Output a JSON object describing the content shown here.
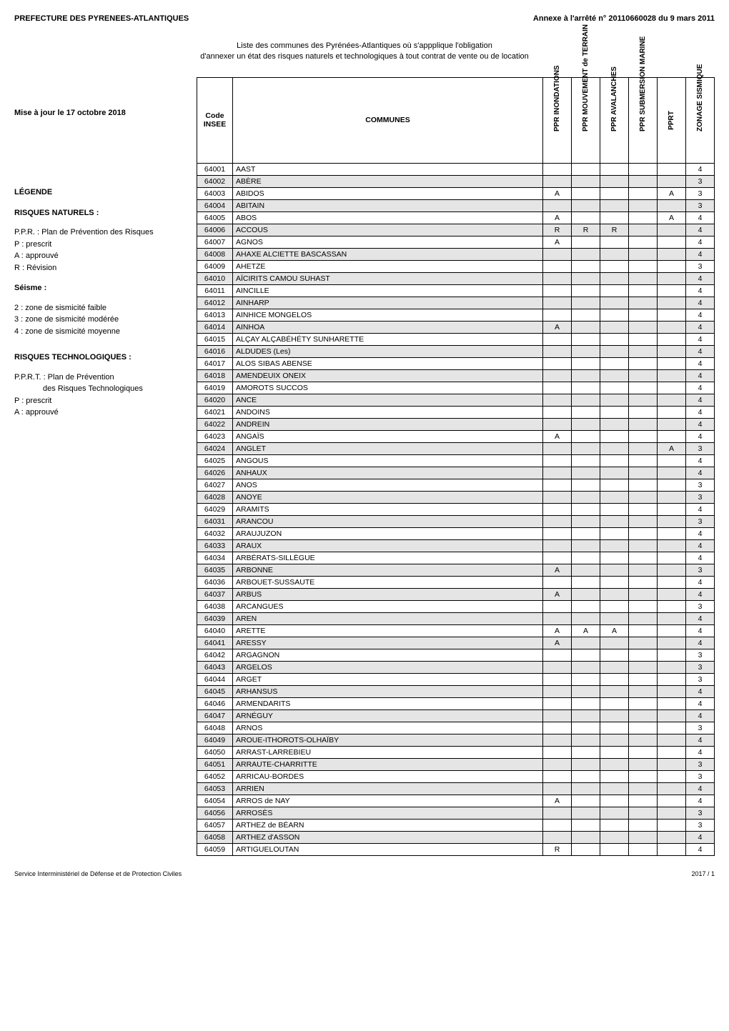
{
  "header": {
    "left": "PREFECTURE DES PYRENEES-ATLANTIQUES",
    "right": "Annexe à l'arrêté n° 20110660028 du 9 mars 2011"
  },
  "intro": {
    "line1": "Liste des communes des Pyrénées-Atlantiques où s'appplique l'obligation",
    "line2": "d'annexer un état des risques naturels et technologiques à tout contrat de vente ou de location"
  },
  "left": {
    "update": "Mise à jour le 17 octobre 2018",
    "legend": "LÉGENDE",
    "risques_naturels": "RISQUES NATURELS :",
    "ppr": "P.P.R. : Plan de Prévention des Risques",
    "p_prescrit": "P : prescrit",
    "a_approuve": "A : approuvé",
    "r_revision": "R : Révision",
    "seisme": "Séisme :",
    "s2": "2 : zone de sismicité faible",
    "s3": "3 : zone de sismicité modérée",
    "s4": "4 : zone de sismicité moyenne",
    "risques_tech": "RISQUES TECHNOLOGIQUES :",
    "pprt": "P.P.R.T. : Plan de Prévention",
    "pprt2": "des Risques Technologiques",
    "p2": "P : prescrit",
    "a2": "A : approuvé"
  },
  "table": {
    "headers": {
      "code": "Code INSEE",
      "communes": "COMMUNES",
      "inond": "PPR INONDATIONS",
      "mouv": "PPR MOUVEMENT de TERRAIN",
      "aval": "PPR AVALANCHES",
      "subm": "PPR SUBMERSION MARINE",
      "pprt": "PPRT",
      "zonage": "ZONAGE SISMIQUE"
    },
    "rows": [
      {
        "code": "64001",
        "name": "AAST",
        "inond": "",
        "mouv": "",
        "aval": "",
        "subm": "",
        "pprt": "",
        "zon": "4",
        "shade": false
      },
      {
        "code": "64002",
        "name": "ABÈRE",
        "inond": "",
        "mouv": "",
        "aval": "",
        "subm": "",
        "pprt": "",
        "zon": "3",
        "shade": true
      },
      {
        "code": "64003",
        "name": "ABIDOS",
        "inond": "A",
        "mouv": "",
        "aval": "",
        "subm": "",
        "pprt": "A",
        "zon": "3",
        "shade": false
      },
      {
        "code": "64004",
        "name": "ABITAIN",
        "inond": "",
        "mouv": "",
        "aval": "",
        "subm": "",
        "pprt": "",
        "zon": "3",
        "shade": true
      },
      {
        "code": "64005",
        "name": "ABOS",
        "inond": "A",
        "mouv": "",
        "aval": "",
        "subm": "",
        "pprt": "A",
        "zon": "4",
        "shade": false
      },
      {
        "code": "64006",
        "name": "ACCOUS",
        "inond": "R",
        "mouv": "R",
        "aval": "R",
        "subm": "",
        "pprt": "",
        "zon": "4",
        "shade": true
      },
      {
        "code": "64007",
        "name": "AGNOS",
        "inond": "A",
        "mouv": "",
        "aval": "",
        "subm": "",
        "pprt": "",
        "zon": "4",
        "shade": false
      },
      {
        "code": "64008",
        "name": "AHAXE ALCIETTE BASCASSAN",
        "inond": "",
        "mouv": "",
        "aval": "",
        "subm": "",
        "pprt": "",
        "zon": "4",
        "shade": true
      },
      {
        "code": "64009",
        "name": "AHETZE",
        "inond": "",
        "mouv": "",
        "aval": "",
        "subm": "",
        "pprt": "",
        "zon": "3",
        "shade": false
      },
      {
        "code": "64010",
        "name": "AÏCIRITS CAMOU SUHAST",
        "inond": "",
        "mouv": "",
        "aval": "",
        "subm": "",
        "pprt": "",
        "zon": "4",
        "shade": true
      },
      {
        "code": "64011",
        "name": "AINCILLE",
        "inond": "",
        "mouv": "",
        "aval": "",
        "subm": "",
        "pprt": "",
        "zon": "4",
        "shade": false
      },
      {
        "code": "64012",
        "name": "AINHARP",
        "inond": "",
        "mouv": "",
        "aval": "",
        "subm": "",
        "pprt": "",
        "zon": "4",
        "shade": true
      },
      {
        "code": "64013",
        "name": "AINHICE MONGELOS",
        "inond": "",
        "mouv": "",
        "aval": "",
        "subm": "",
        "pprt": "",
        "zon": "4",
        "shade": false
      },
      {
        "code": "64014",
        "name": "AINHOA",
        "inond": "A",
        "mouv": "",
        "aval": "",
        "subm": "",
        "pprt": "",
        "zon": "4",
        "shade": true
      },
      {
        "code": "64015",
        "name": "ALÇAY ALÇABÉHÉTY SUNHARETTE",
        "inond": "",
        "mouv": "",
        "aval": "",
        "subm": "",
        "pprt": "",
        "zon": "4",
        "shade": false
      },
      {
        "code": "64016",
        "name": "ALDUDES (Les)",
        "inond": "",
        "mouv": "",
        "aval": "",
        "subm": "",
        "pprt": "",
        "zon": "4",
        "shade": true
      },
      {
        "code": "64017",
        "name": "ALOS SIBAS ABENSE",
        "inond": "",
        "mouv": "",
        "aval": "",
        "subm": "",
        "pprt": "",
        "zon": "4",
        "shade": false
      },
      {
        "code": "64018",
        "name": "AMENDEUIX ONEIX",
        "inond": "",
        "mouv": "",
        "aval": "",
        "subm": "",
        "pprt": "",
        "zon": "4",
        "shade": true
      },
      {
        "code": "64019",
        "name": "AMOROTS SUCCOS",
        "inond": "",
        "mouv": "",
        "aval": "",
        "subm": "",
        "pprt": "",
        "zon": "4",
        "shade": false
      },
      {
        "code": "64020",
        "name": "ANCE",
        "inond": "",
        "mouv": "",
        "aval": "",
        "subm": "",
        "pprt": "",
        "zon": "4",
        "shade": true
      },
      {
        "code": "64021",
        "name": "ANDOINS",
        "inond": "",
        "mouv": "",
        "aval": "",
        "subm": "",
        "pprt": "",
        "zon": "4",
        "shade": false
      },
      {
        "code": "64022",
        "name": "ANDREIN",
        "inond": "",
        "mouv": "",
        "aval": "",
        "subm": "",
        "pprt": "",
        "zon": "4",
        "shade": true
      },
      {
        "code": "64023",
        "name": "ANGAÏS",
        "inond": "A",
        "mouv": "",
        "aval": "",
        "subm": "",
        "pprt": "",
        "zon": "4",
        "shade": false
      },
      {
        "code": "64024",
        "name": "ANGLET",
        "inond": "",
        "mouv": "",
        "aval": "",
        "subm": "",
        "pprt": "A",
        "zon": "3",
        "shade": true
      },
      {
        "code": "64025",
        "name": "ANGOUS",
        "inond": "",
        "mouv": "",
        "aval": "",
        "subm": "",
        "pprt": "",
        "zon": "4",
        "shade": false
      },
      {
        "code": "64026",
        "name": "ANHAUX",
        "inond": "",
        "mouv": "",
        "aval": "",
        "subm": "",
        "pprt": "",
        "zon": "4",
        "shade": true
      },
      {
        "code": "64027",
        "name": "ANOS",
        "inond": "",
        "mouv": "",
        "aval": "",
        "subm": "",
        "pprt": "",
        "zon": "3",
        "shade": false
      },
      {
        "code": "64028",
        "name": "ANOYE",
        "inond": "",
        "mouv": "",
        "aval": "",
        "subm": "",
        "pprt": "",
        "zon": "3",
        "shade": true
      },
      {
        "code": "64029",
        "name": "ARAMITS",
        "inond": "",
        "mouv": "",
        "aval": "",
        "subm": "",
        "pprt": "",
        "zon": "4",
        "shade": false
      },
      {
        "code": "64031",
        "name": "ARANCOU",
        "inond": "",
        "mouv": "",
        "aval": "",
        "subm": "",
        "pprt": "",
        "zon": "3",
        "shade": true
      },
      {
        "code": "64032",
        "name": "ARAUJUZON",
        "inond": "",
        "mouv": "",
        "aval": "",
        "subm": "",
        "pprt": "",
        "zon": "4",
        "shade": false
      },
      {
        "code": "64033",
        "name": "ARAUX",
        "inond": "",
        "mouv": "",
        "aval": "",
        "subm": "",
        "pprt": "",
        "zon": "4",
        "shade": true
      },
      {
        "code": "64034",
        "name": "ARBÉRATS-SILLÈGUE",
        "inond": "",
        "mouv": "",
        "aval": "",
        "subm": "",
        "pprt": "",
        "zon": "4",
        "shade": false
      },
      {
        "code": "64035",
        "name": "ARBONNE",
        "inond": "A",
        "mouv": "",
        "aval": "",
        "subm": "",
        "pprt": "",
        "zon": "3",
        "shade": true
      },
      {
        "code": "64036",
        "name": "ARBOUET-SUSSAUTE",
        "inond": "",
        "mouv": "",
        "aval": "",
        "subm": "",
        "pprt": "",
        "zon": "4",
        "shade": false
      },
      {
        "code": "64037",
        "name": "ARBUS",
        "inond": "A",
        "mouv": "",
        "aval": "",
        "subm": "",
        "pprt": "",
        "zon": "4",
        "shade": true
      },
      {
        "code": "64038",
        "name": "ARCANGUES",
        "inond": "",
        "mouv": "",
        "aval": "",
        "subm": "",
        "pprt": "",
        "zon": "3",
        "shade": false
      },
      {
        "code": "64039",
        "name": "AREN",
        "inond": "",
        "mouv": "",
        "aval": "",
        "subm": "",
        "pprt": "",
        "zon": "4",
        "shade": true
      },
      {
        "code": "64040",
        "name": "ARETTE",
        "inond": "A",
        "mouv": "A",
        "aval": "A",
        "subm": "",
        "pprt": "",
        "zon": "4",
        "shade": false
      },
      {
        "code": "64041",
        "name": "ARESSY",
        "inond": "A",
        "mouv": "",
        "aval": "",
        "subm": "",
        "pprt": "",
        "zon": "4",
        "shade": true
      },
      {
        "code": "64042",
        "name": "ARGAGNON",
        "inond": "",
        "mouv": "",
        "aval": "",
        "subm": "",
        "pprt": "",
        "zon": "3",
        "shade": false
      },
      {
        "code": "64043",
        "name": "ARGELOS",
        "inond": "",
        "mouv": "",
        "aval": "",
        "subm": "",
        "pprt": "",
        "zon": "3",
        "shade": true
      },
      {
        "code": "64044",
        "name": "ARGET",
        "inond": "",
        "mouv": "",
        "aval": "",
        "subm": "",
        "pprt": "",
        "zon": "3",
        "shade": false
      },
      {
        "code": "64045",
        "name": "ARHANSUS",
        "inond": "",
        "mouv": "",
        "aval": "",
        "subm": "",
        "pprt": "",
        "zon": "4",
        "shade": true
      },
      {
        "code": "64046",
        "name": "ARMENDARITS",
        "inond": "",
        "mouv": "",
        "aval": "",
        "subm": "",
        "pprt": "",
        "zon": "4",
        "shade": false
      },
      {
        "code": "64047",
        "name": "ARNÉGUY",
        "inond": "",
        "mouv": "",
        "aval": "",
        "subm": "",
        "pprt": "",
        "zon": "4",
        "shade": true
      },
      {
        "code": "64048",
        "name": "ARNOS",
        "inond": "",
        "mouv": "",
        "aval": "",
        "subm": "",
        "pprt": "",
        "zon": "3",
        "shade": false
      },
      {
        "code": "64049",
        "name": "AROUE-ITHOROTS-OLHAÏBY",
        "inond": "",
        "mouv": "",
        "aval": "",
        "subm": "",
        "pprt": "",
        "zon": "4",
        "shade": true
      },
      {
        "code": "64050",
        "name": "ARRAST-LARREBIEU",
        "inond": "",
        "mouv": "",
        "aval": "",
        "subm": "",
        "pprt": "",
        "zon": "4",
        "shade": false
      },
      {
        "code": "64051",
        "name": "ARRAUTE-CHARRITTE",
        "inond": "",
        "mouv": "",
        "aval": "",
        "subm": "",
        "pprt": "",
        "zon": "3",
        "shade": true
      },
      {
        "code": "64052",
        "name": "ARRICAU-BORDES",
        "inond": "",
        "mouv": "",
        "aval": "",
        "subm": "",
        "pprt": "",
        "zon": "3",
        "shade": false
      },
      {
        "code": "64053",
        "name": "ARRIEN",
        "inond": "",
        "mouv": "",
        "aval": "",
        "subm": "",
        "pprt": "",
        "zon": "4",
        "shade": true
      },
      {
        "code": "64054",
        "name": "ARROS de NAY",
        "inond": "A",
        "mouv": "",
        "aval": "",
        "subm": "",
        "pprt": "",
        "zon": "4",
        "shade": false
      },
      {
        "code": "64056",
        "name": "ARROSÈS",
        "inond": "",
        "mouv": "",
        "aval": "",
        "subm": "",
        "pprt": "",
        "zon": "3",
        "shade": true
      },
      {
        "code": "64057",
        "name": "ARTHEZ de BÉARN",
        "inond": "",
        "mouv": "",
        "aval": "",
        "subm": "",
        "pprt": "",
        "zon": "3",
        "shade": false
      },
      {
        "code": "64058",
        "name": "ARTHEZ d'ASSON",
        "inond": "",
        "mouv": "",
        "aval": "",
        "subm": "",
        "pprt": "",
        "zon": "4",
        "shade": true
      },
      {
        "code": "64059",
        "name": "ARTIGUELOUTAN",
        "inond": "R",
        "mouv": "",
        "aval": "",
        "subm": "",
        "pprt": "",
        "zon": "4",
        "shade": false
      }
    ]
  },
  "footer": {
    "left": "Service Interministériel de Défense et de Protection Civiles",
    "right": "2017 / 1"
  },
  "colors": {
    "shade": "#e5e5e5",
    "border": "#000000",
    "text": "#000000"
  }
}
